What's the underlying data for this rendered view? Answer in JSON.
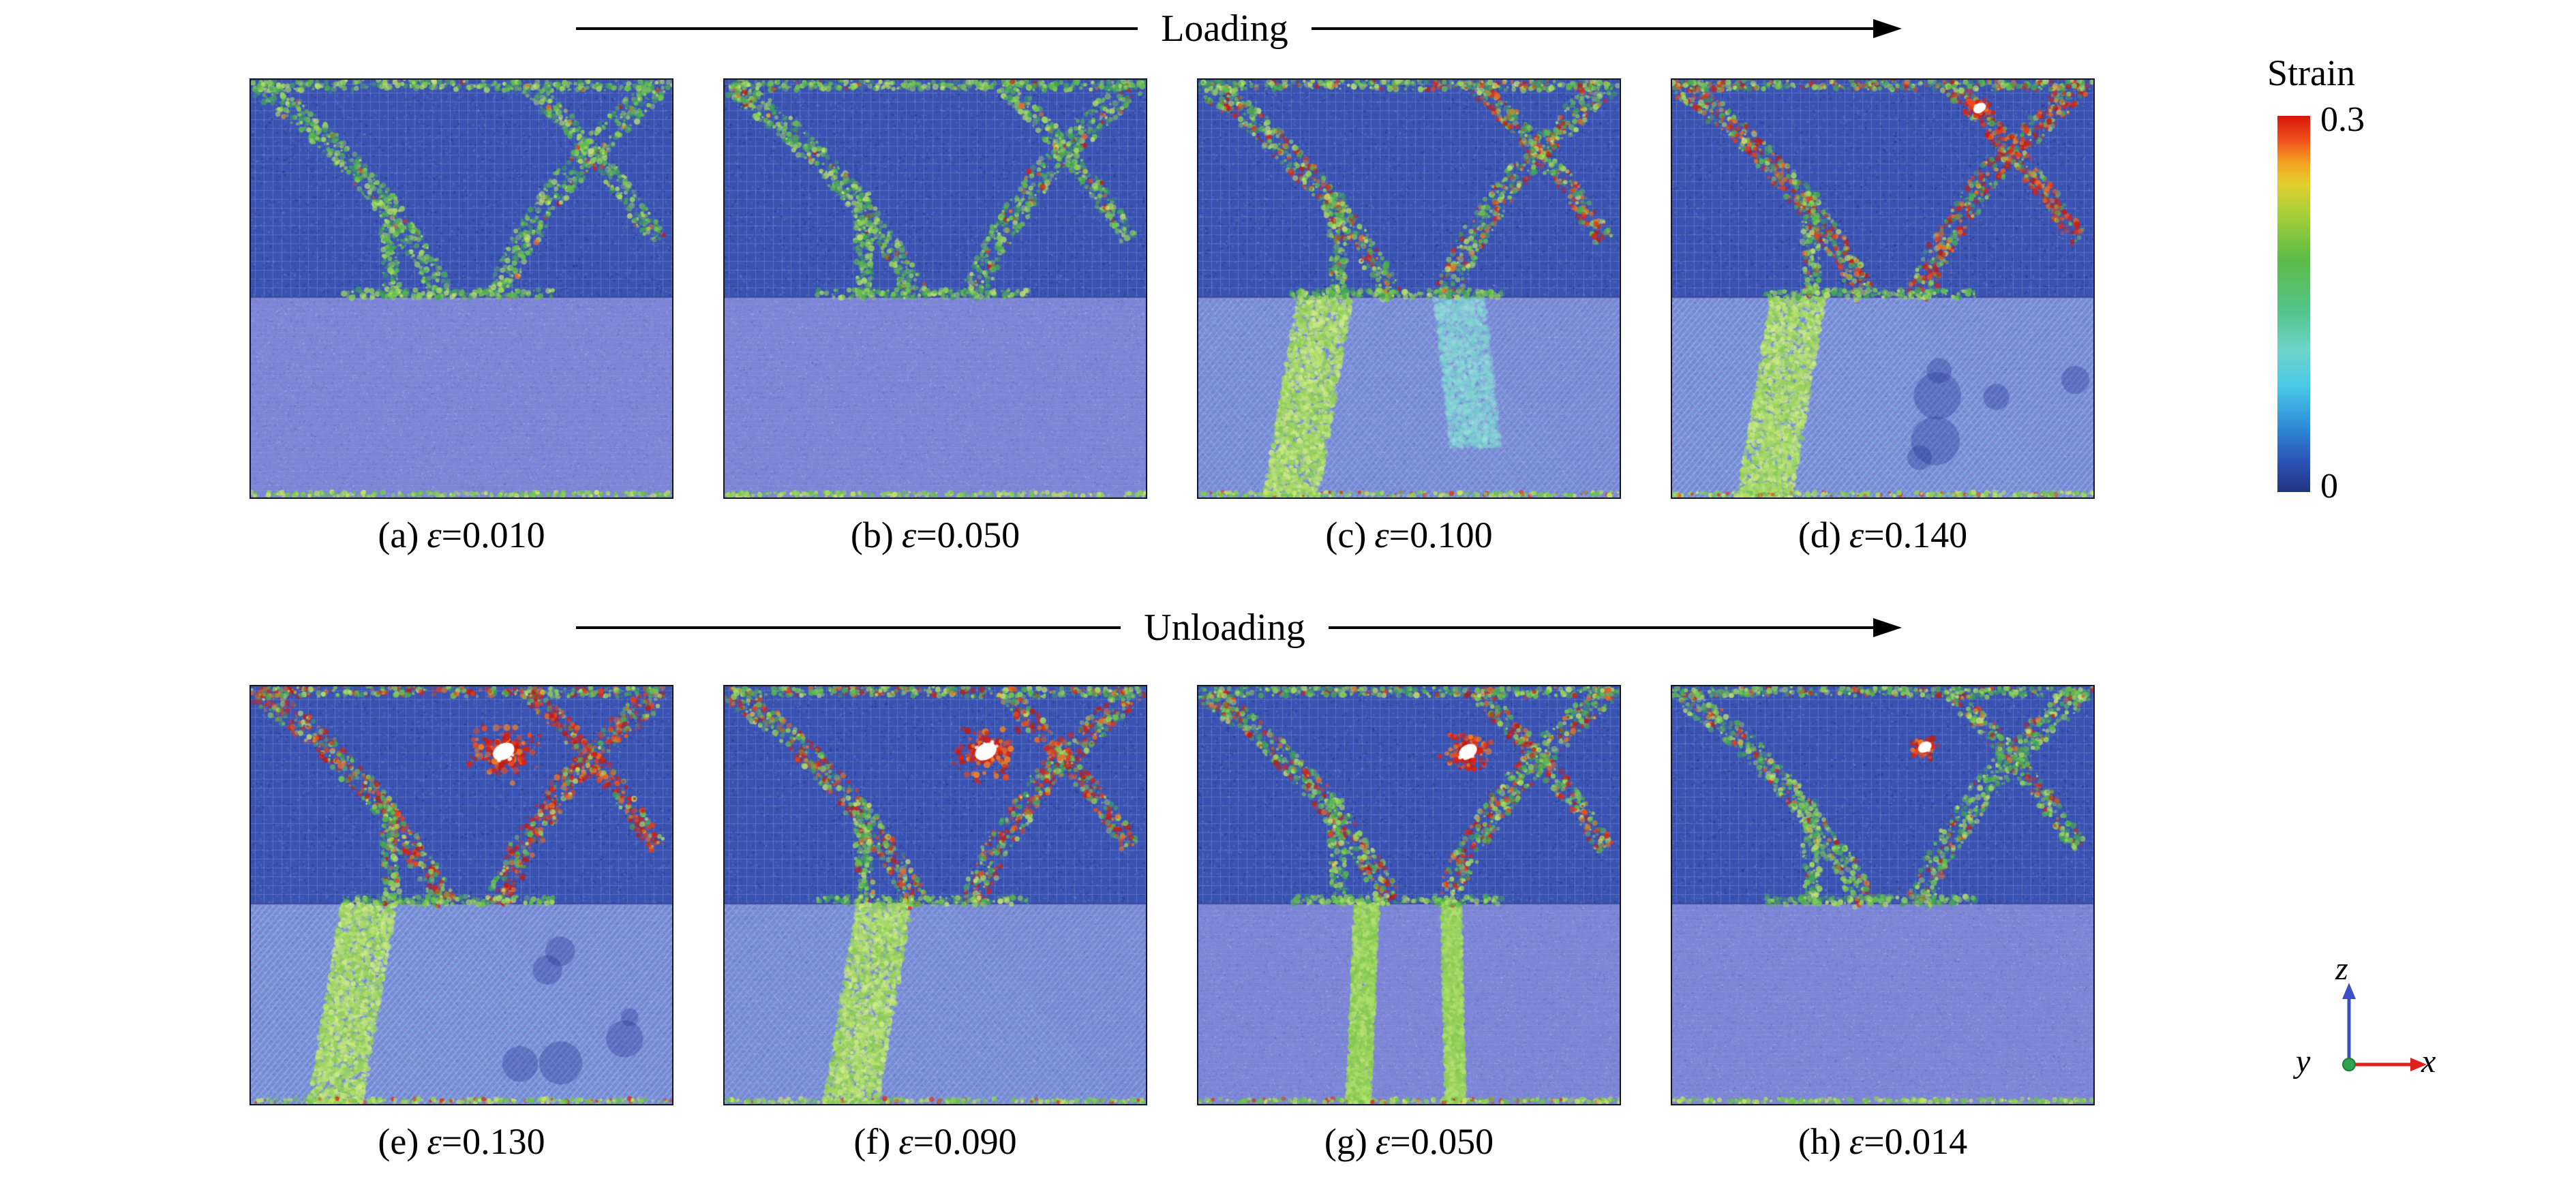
{
  "figure": {
    "loading_label": "Loading",
    "unloading_label": "Unloading"
  },
  "colorbar": {
    "title": "Strain",
    "max_label": "0.3",
    "min_label": "0",
    "max_color": "#d9150e",
    "min_color": "#20337f"
  },
  "axes": {
    "x": "x",
    "y": "y",
    "z": "z"
  },
  "panels": [
    {
      "id": "a",
      "prefix": "(a)",
      "symbol": "ε",
      "value": "=0.010",
      "phase": "loading",
      "visual": {
        "seed": 101,
        "red": 0.05,
        "void": 0,
        "voidX": 0,
        "voidY": 0,
        "bottom": "plain",
        "bandX": 0,
        "cyanBand": false
      }
    },
    {
      "id": "b",
      "prefix": "(b)",
      "symbol": "ε",
      "value": "=0.050",
      "phase": "loading",
      "visual": {
        "seed": 202,
        "red": 0.08,
        "void": 0,
        "voidX": 0,
        "voidY": 0,
        "bottom": "plain",
        "bandX": 0,
        "cyanBand": false
      }
    },
    {
      "id": "c",
      "prefix": "(c)",
      "symbol": "ε",
      "value": "=0.100",
      "phase": "loading",
      "visual": {
        "seed": 303,
        "red": 0.3,
        "void": 0,
        "voidX": 0,
        "voidY": 0,
        "bottom": "hatch-band",
        "bandX": 0.3,
        "cyanBand": true
      }
    },
    {
      "id": "d",
      "prefix": "(d)",
      "symbol": "ε",
      "value": "=0.140",
      "phase": "loading",
      "visual": {
        "seed": 404,
        "red": 0.55,
        "void": 0.35,
        "voidX": 0.73,
        "voidY": 0.13,
        "bottom": "hatch-full",
        "bandX": 0.3,
        "cyanBand": false
      }
    },
    {
      "id": "e",
      "prefix": "(e)",
      "symbol": "ε",
      "value": "=0.130",
      "phase": "unloading",
      "visual": {
        "seed": 505,
        "red": 0.6,
        "void": 1,
        "voidX": 0.6,
        "voidY": 0.3,
        "bottom": "hatch-full",
        "bandX": 0.28,
        "cyanBand": false
      }
    },
    {
      "id": "f",
      "prefix": "(f)",
      "symbol": "ε",
      "value": "=0.090",
      "phase": "unloading",
      "visual": {
        "seed": 606,
        "red": 0.5,
        "void": 1,
        "voidX": 0.62,
        "voidY": 0.3,
        "bottom": "hatch-band",
        "bandX": 0.38,
        "cyanBand": false
      }
    },
    {
      "id": "g",
      "prefix": "(g)",
      "symbol": "ε",
      "value": "=0.050",
      "phase": "unloading",
      "visual": {
        "seed": 707,
        "red": 0.3,
        "void": 0.7,
        "voidX": 0.64,
        "voidY": 0.3,
        "bottom": "verticals",
        "bandX": 0,
        "cyanBand": false
      }
    },
    {
      "id": "h",
      "prefix": "(h)",
      "symbol": "ε",
      "value": "=0.014",
      "phase": "unloading",
      "visual": {
        "seed": 808,
        "red": 0.18,
        "void": 0.4,
        "voidX": 0.6,
        "voidY": 0.28,
        "bottom": "plain",
        "bandX": 0,
        "cyanBand": false
      }
    }
  ]
}
